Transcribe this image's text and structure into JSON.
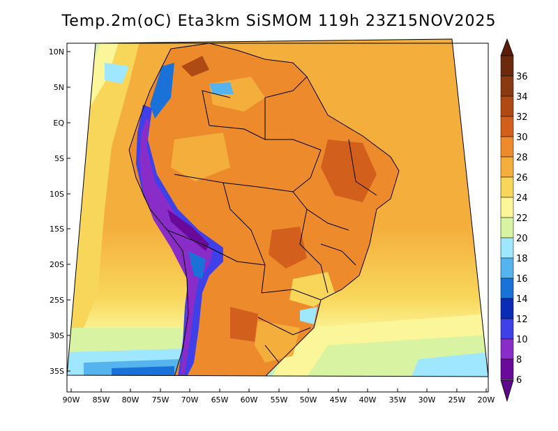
{
  "title": "Temp.2m(oC) Eta3km SiSMOM 119h 23Z15NOV2025",
  "lat_labels": [
    "10N",
    "5N",
    "EQ",
    "5S",
    "10S",
    "15S",
    "20S",
    "25S",
    "30S",
    "35S"
  ],
  "lon_labels": [
    "90W",
    "85W",
    "80W",
    "75W",
    "70W",
    "65W",
    "60W",
    "55W",
    "50W",
    "45W",
    "40W",
    "35W",
    "30W",
    "25W",
    "20W"
  ],
  "colorbar": {
    "labels": [
      "36",
      "34",
      "32",
      "30",
      "28",
      "26",
      "24",
      "22",
      "20",
      "18",
      "16",
      "14",
      "12",
      "10",
      "8",
      "6"
    ],
    "colors": [
      "#6b2a0c",
      "#8a3a10",
      "#b04a14",
      "#d2601c",
      "#ec8a2c",
      "#f4ae3c",
      "#f8d65a",
      "#fbf69a",
      "#d8f4a2",
      "#9fe6ff",
      "#55b4ee",
      "#1a72d8",
      "#0a2cb4",
      "#4040e8",
      "#8a2cc8",
      "#6a0a9a"
    ],
    "top_color": "#5a1e08",
    "bottom_color": "#5a0a8a"
  },
  "palette": {
    "ocean_warm": "#f4ae3c",
    "ocean_mid": "#f8d65a",
    "ocean_cool": "#fbf69a",
    "ocean_cold": "#d8f4a2",
    "ocean_colder": "#9fe6ff",
    "land_hot": "#ec8a2c",
    "land_veryhot": "#d2601c",
    "andes_cold": "#4040e8",
    "andes_colder": "#8a2cc8",
    "andes_cold2": "#1a72d8"
  }
}
